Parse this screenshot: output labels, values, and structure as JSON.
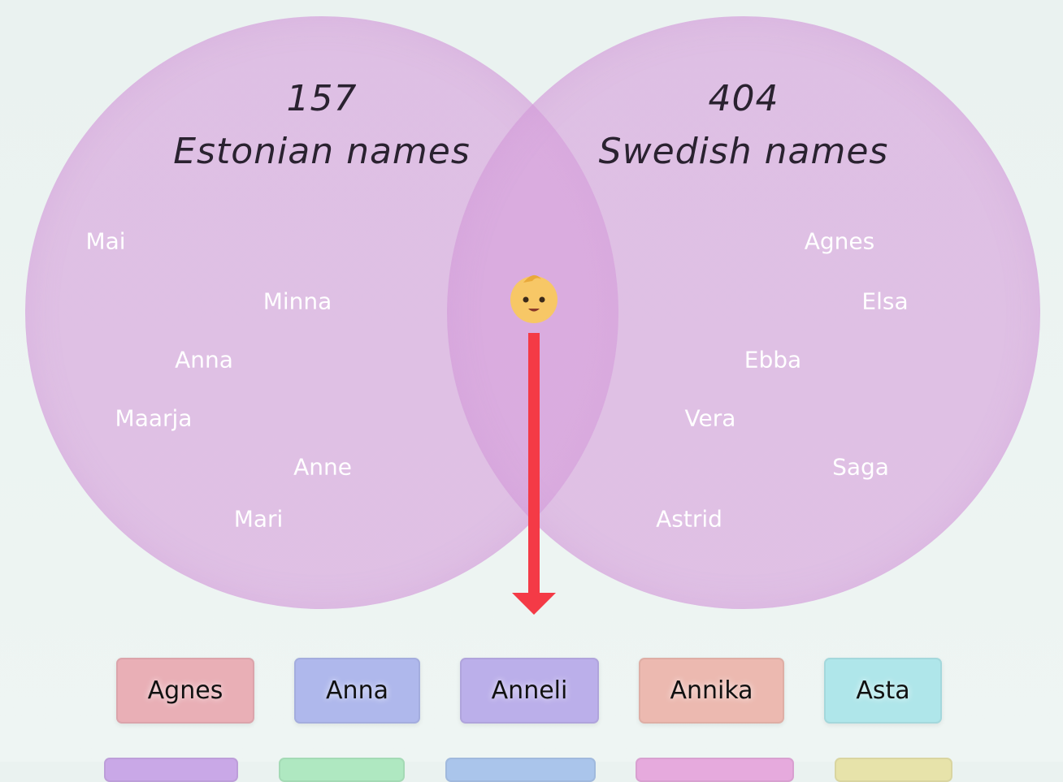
{
  "venn": {
    "left": {
      "count": 157,
      "label": "Estonian names",
      "names": [
        "Mai",
        "Minna",
        "Anna",
        "Maarja",
        "Anne",
        "Mari"
      ]
    },
    "right": {
      "count": 404,
      "label": "Swedish names",
      "names": [
        "Agnes",
        "Elsa",
        "Ebba",
        "Vera",
        "Saga",
        "Astrid"
      ]
    }
  },
  "tags": [
    {
      "label": "Agnes",
      "color": "#e9afb6"
    },
    {
      "label": "Anna",
      "color": "#afb8ec"
    },
    {
      "label": "Anneli",
      "color": "#bbafea"
    },
    {
      "label": "Annika",
      "color": "#ecb9b0"
    },
    {
      "label": "Asta",
      "color": "#afe6ea"
    }
  ]
}
